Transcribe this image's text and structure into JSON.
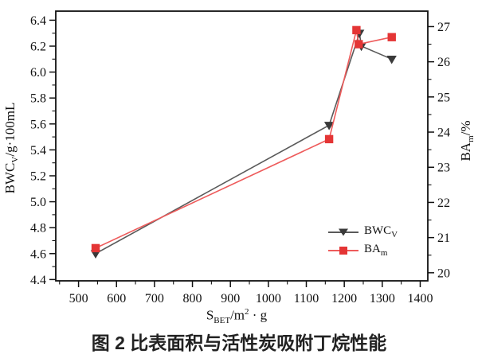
{
  "caption": "图 2  比表面积与活性炭吸附丁烷性能",
  "labels": {
    "left": {
      "main": "BWC",
      "sub": "V",
      "rest": "/g·100mL"
    },
    "right": {
      "main": "BA",
      "sub": "m",
      "rest": "/%"
    },
    "x": {
      "main": "S",
      "sub": "BET",
      "mid": "/m",
      "sup": "2",
      "rest": " · g"
    }
  },
  "legend": {
    "items": [
      {
        "main": "BWC",
        "sub": "V"
      },
      {
        "main": "BA",
        "sub": "m"
      }
    ]
  },
  "colors": {
    "axis": "#111111",
    "bwc_line": "#5a5a5a",
    "bwc_marker": "#3a3a3a",
    "ba_line": "#ee5b5b",
    "ba_marker": "#e43535"
  },
  "chart_data": {
    "type": "line",
    "title": "",
    "xlabel": "S_BET/m^2 · g",
    "ylabel_left": "BWC_V/g·100mL",
    "ylabel_right": "BA_m/%",
    "grid": false,
    "legend_position": "inside-right-center",
    "x_axis": {
      "min": 440,
      "max": 1420,
      "major_ticks": [
        500,
        600,
        700,
        800,
        900,
        1000,
        1100,
        1200,
        1300,
        1400
      ],
      "minor_step": 50
    },
    "left_axis": {
      "min": 4.39,
      "max": 6.47,
      "major_ticks": [
        4.4,
        4.6,
        4.8,
        5.0,
        5.2,
        5.4,
        5.6,
        5.8,
        6.0,
        6.2,
        6.4
      ],
      "minor_step": 0.1,
      "tick_decimals": 1
    },
    "right_axis": {
      "min": 19.77,
      "max": 27.44,
      "major_ticks": [
        20,
        21,
        22,
        23,
        24,
        25,
        26,
        27
      ],
      "minor_step": 0.5,
      "tick_decimals": 0
    },
    "series": [
      {
        "name": "BWC_V",
        "axis": "left",
        "marker": "triangle-down",
        "points": [
          [
            545,
            4.6
          ],
          [
            1160,
            5.59
          ],
          [
            1240,
            6.3
          ],
          [
            1245,
            6.2
          ],
          [
            1325,
            6.1
          ]
        ]
      },
      {
        "name": "BA_m",
        "axis": "right",
        "marker": "square",
        "points": [
          [
            545,
            20.7
          ],
          [
            1160,
            23.8
          ],
          [
            1232,
            26.9
          ],
          [
            1238,
            26.5
          ],
          [
            1325,
            26.7
          ]
        ]
      }
    ]
  }
}
